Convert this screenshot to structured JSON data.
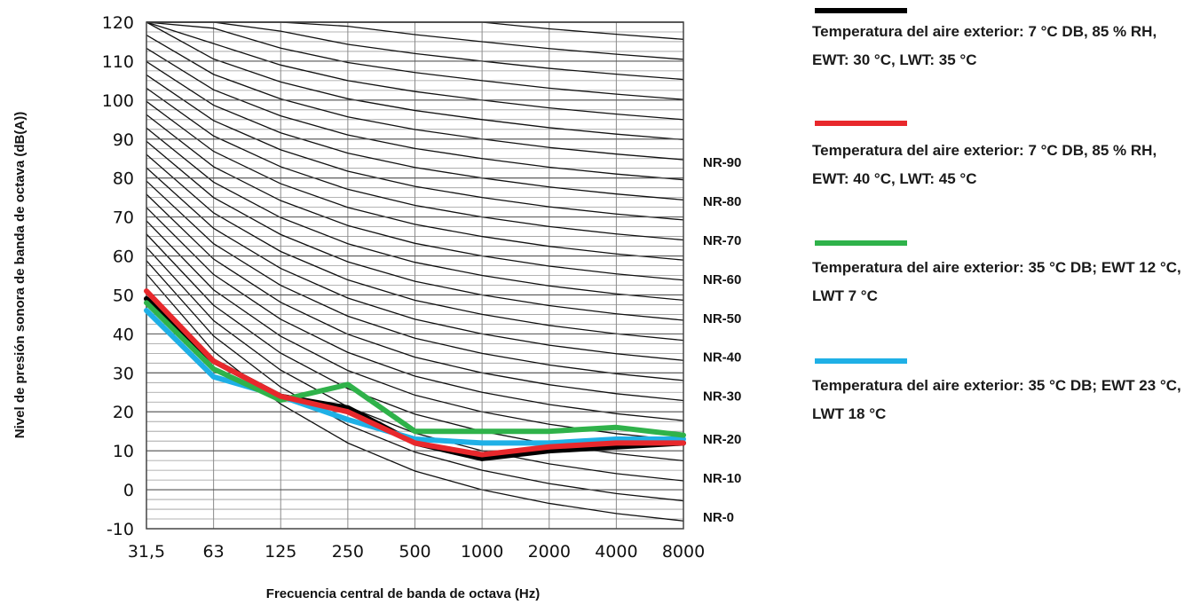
{
  "chart_data": {
    "type": "line",
    "xlabel": "Frecuencia central de banda de octava (Hz)",
    "ylabel": "Nivel de presión sonora de banda de octava (dB(A))",
    "x_categories": [
      "31,5",
      "63",
      "125",
      "250",
      "500",
      "1000",
      "2000",
      "4000",
      "8000"
    ],
    "y_ticks": [
      "120",
      "110",
      "100",
      "90",
      "80",
      "70",
      "60",
      "50",
      "40",
      "30",
      "20",
      "10",
      "0",
      "-10"
    ],
    "ylim": [
      -10,
      120
    ],
    "grid": true,
    "legend_position": "right",
    "nr_labels": [
      {
        "label": "NR-90",
        "y": 84
      },
      {
        "label": "NR-80",
        "y": 74
      },
      {
        "label": "NR-70",
        "y": 64
      },
      {
        "label": "NR-60",
        "y": 54
      },
      {
        "label": "NR-50",
        "y": 44
      },
      {
        "label": "NR-40",
        "y": 34
      },
      {
        "label": "NR-30",
        "y": 24
      },
      {
        "label": "NR-20",
        "y": 13
      },
      {
        "label": "NR-10",
        "y": 3
      },
      {
        "label": "NR-0",
        "y": -7
      }
    ],
    "series": [
      {
        "name": "Temperatura del aire exterior: 7 °C DB, 85 % RH, EWT: 30 °C, LWT: 35 °C",
        "color": "#000000",
        "values": [
          49,
          33,
          24,
          21,
          12,
          8,
          10,
          11,
          12
        ]
      },
      {
        "name": "Temperatura del aire exterior: 7 °C DB, 85 % RH, EWT: 40 °C, LWT: 45 °C",
        "color": "#e8282c",
        "values": [
          51,
          33,
          24,
          20,
          12,
          9,
          11,
          12,
          12
        ]
      },
      {
        "name": "Temperatura del aire exterior: 35 °C DB; EWT 12 °C, LWT 7 °C",
        "color": "#2fb24a",
        "values": [
          48,
          31,
          23,
          27,
          15,
          15,
          15,
          16,
          14
        ]
      },
      {
        "name": "Temperatura del aire exterior: 35 °C DB; EWT 23 °C, LWT 18 °C",
        "color": "#1fb0e6",
        "values": [
          46,
          29,
          24,
          18,
          13,
          12,
          12,
          13,
          13
        ]
      }
    ]
  }
}
